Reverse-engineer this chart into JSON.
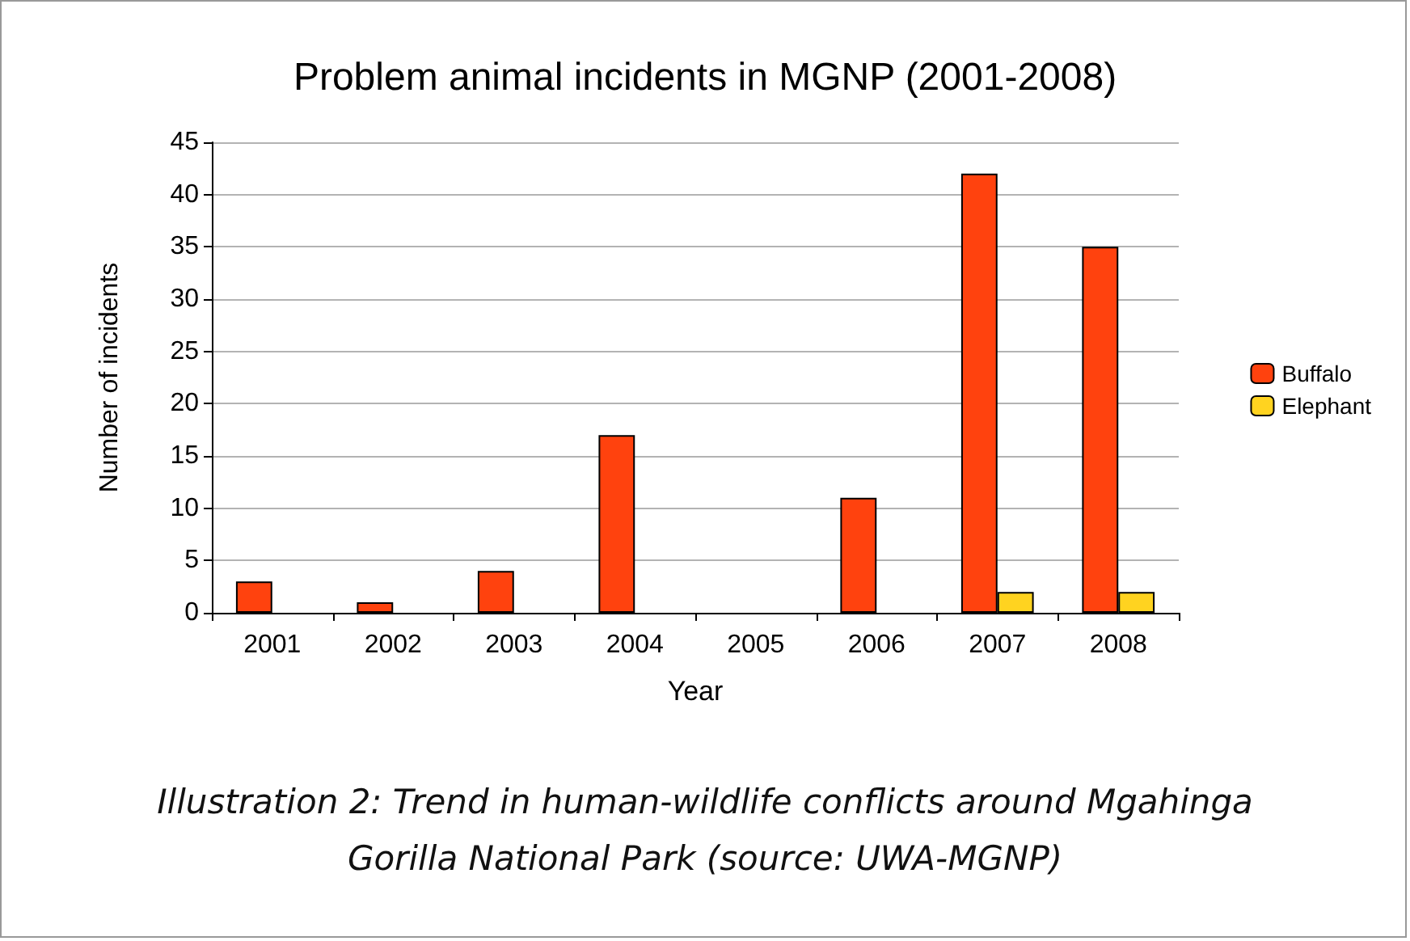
{
  "chart_data": {
    "type": "bar",
    "title": "Problem animal incidents in MGNP (2001-2008)",
    "xlabel": "Year",
    "ylabel": "Number of incidents",
    "categories": [
      "2001",
      "2002",
      "2003",
      "2004",
      "2005",
      "2006",
      "2007",
      "2008"
    ],
    "series": [
      {
        "name": "Buffalo",
        "color": "#ff420e",
        "values": [
          3,
          1,
          4,
          17,
          null,
          11,
          42,
          35
        ]
      },
      {
        "name": "Elephant",
        "color": "#ffd320",
        "values": [
          null,
          null,
          null,
          null,
          null,
          null,
          2,
          2
        ]
      }
    ],
    "ylim": [
      0,
      45
    ],
    "yticks": [
      0,
      5,
      10,
      15,
      20,
      25,
      30,
      35,
      40,
      45
    ],
    "grid": "y",
    "legend": "right",
    "annotations": [
      "Illustration 2: Trend in human-wildlife conflicts around Mgahinga Gorilla National Park (source: UWA-MGNP)"
    ]
  }
}
